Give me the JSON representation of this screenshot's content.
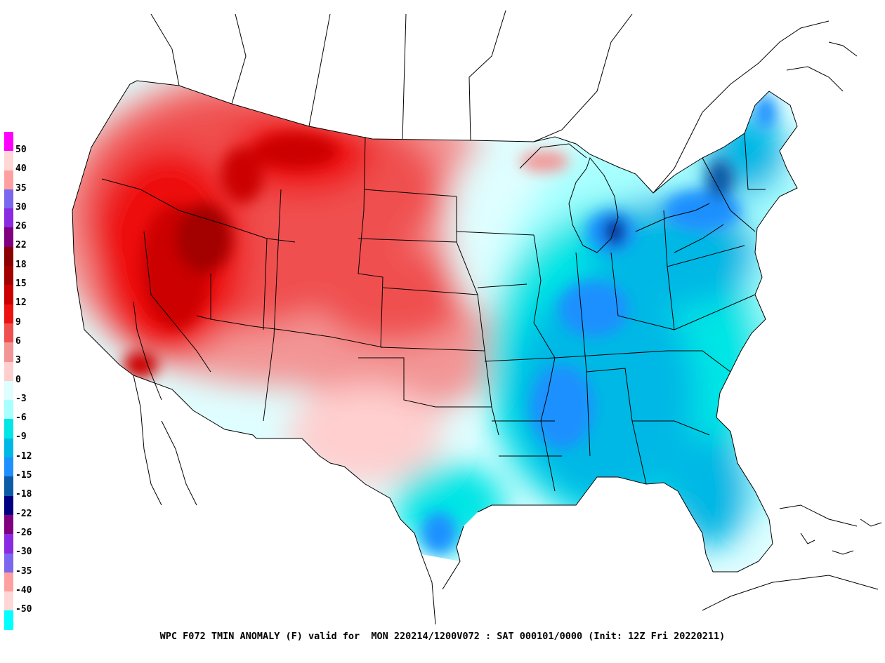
{
  "caption": "WPC F072 TMIN ANOMALY (F) valid for  MON 220214/1200V072 : SAT 000101/0000 (Init: 12Z Fri 20220211)",
  "legend": {
    "colors": [
      "#ff00ff",
      "#ffd7d7",
      "#ffa0a0",
      "#7b68ee",
      "#8a2be2",
      "#800080",
      "#8b0000",
      "#a30000",
      "#cc0000",
      "#ee1111",
      "#f05050",
      "#f39595",
      "#ffcfcf",
      "#dffeff",
      "#a7ffff",
      "#00e5e5",
      "#00b8e5",
      "#1e90ff",
      "#0d5aa7",
      "#000080",
      "#800080",
      "#8a2be2",
      "#7b68ee",
      "#ffa0a0",
      "#ffd7d7",
      "#00ffff"
    ],
    "labels": [
      "50",
      "40",
      "35",
      "30",
      "26",
      "22",
      "18",
      "15",
      "12",
      "9",
      "6",
      "3",
      "0",
      "-3",
      "-6",
      "-9",
      "-12",
      "-15",
      "-18",
      "-22",
      "-26",
      "-30",
      "-35",
      "-40",
      "-50"
    ]
  }
}
